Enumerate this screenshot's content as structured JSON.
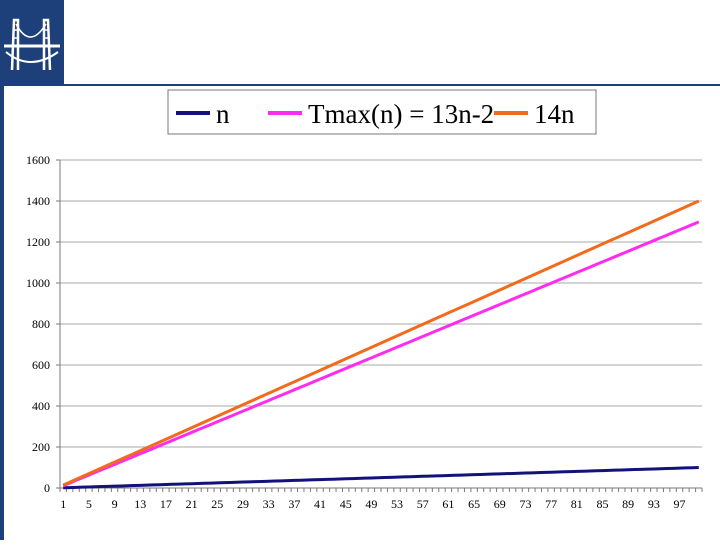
{
  "slide": {
    "logo": "bridge-logo-icon",
    "theme_color": "#1d3f7a"
  },
  "chart_data": {
    "type": "line",
    "title": "",
    "xlabel": "",
    "ylabel": "",
    "x": [
      1,
      2,
      3,
      4,
      5,
      6,
      7,
      8,
      9,
      10,
      11,
      12,
      13,
      14,
      15,
      16,
      17,
      18,
      19,
      20,
      21,
      22,
      23,
      24,
      25,
      26,
      27,
      28,
      29,
      30,
      31,
      32,
      33,
      34,
      35,
      36,
      37,
      38,
      39,
      40,
      41,
      42,
      43,
      44,
      45,
      46,
      47,
      48,
      49,
      50,
      51,
      52,
      53,
      54,
      55,
      56,
      57,
      58,
      59,
      60,
      61,
      62,
      63,
      64,
      65,
      66,
      67,
      68,
      69,
      70,
      71,
      72,
      73,
      74,
      75,
      76,
      77,
      78,
      79,
      80,
      81,
      82,
      83,
      84,
      85,
      86,
      87,
      88,
      89,
      90,
      91,
      92,
      93,
      94,
      95,
      96,
      97,
      98,
      99,
      100
    ],
    "x_tick_labels": [
      "1",
      "5",
      "9",
      "13",
      "17",
      "21",
      "25",
      "29",
      "33",
      "37",
      "41",
      "45",
      "49",
      "53",
      "57",
      "61",
      "65",
      "69",
      "73",
      "77",
      "81",
      "85",
      "89",
      "93",
      "97"
    ],
    "ylim": [
      0,
      1600
    ],
    "y_ticks": [
      "0",
      "200",
      "400",
      "600",
      "800",
      "1000",
      "1200",
      "1400",
      "1600"
    ],
    "grid": true,
    "legend_position": "top",
    "series": [
      {
        "name": "n",
        "color": "#12127a",
        "slope": 1,
        "intercept": 0
      },
      {
        "name": "Tmax(n) = 13n-2",
        "color": "#ff2cf0",
        "slope": 13,
        "intercept": -2
      },
      {
        "name": "14n",
        "color": "#f26a1b",
        "slope": 14,
        "intercept": 0
      }
    ]
  }
}
